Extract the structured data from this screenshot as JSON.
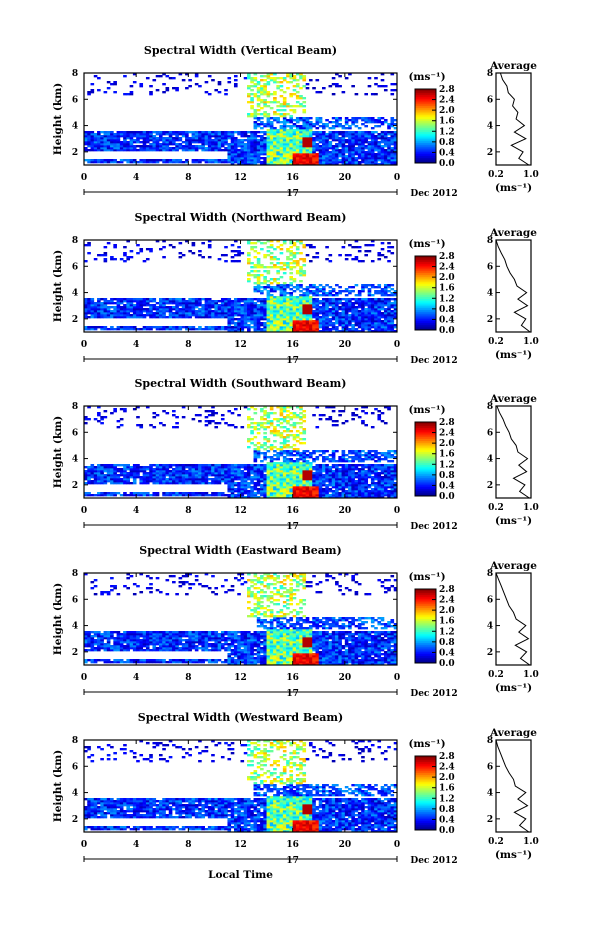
{
  "figure": {
    "xlabel": "Local Time",
    "date_label": "Dec 2012",
    "day_label": "17",
    "cbar_unit": "(ms⁻¹)",
    "avg_title": "Average",
    "avg_xlabel": "(ms⁻¹)"
  },
  "chart_data": [
    {
      "type": "heatmap",
      "title": "Spectral Width (Vertical Beam)",
      "ylabel": "Height (km)",
      "x_ticks": [
        "0",
        "4",
        "8",
        "12",
        "16",
        "20",
        "0"
      ],
      "x_range_hours": [
        0,
        24
      ],
      "y_ticks": [
        "2",
        "4",
        "6",
        "8"
      ],
      "y_range_km": [
        1,
        8
      ],
      "colorbar": {
        "min": 0.0,
        "max": 2.8,
        "ticks": [
          "0.0",
          "0.4",
          "0.8",
          "1.2",
          "1.6",
          "2.0",
          "2.4",
          "2.8"
        ],
        "colormap": "jet"
      },
      "average_profile": {
        "x_ticks": [
          "0.2",
          "1.0"
        ],
        "x_range": [
          0.2,
          1.0
        ],
        "y_ticks": [
          "2",
          "4",
          "6",
          "8"
        ],
        "y_range": [
          1,
          8
        ],
        "height_km": [
          1.0,
          1.5,
          2.0,
          2.5,
          3.0,
          3.5,
          4.0,
          4.5,
          5.0,
          5.5,
          6.0,
          6.5,
          7.0,
          7.5,
          8.0
        ],
        "width_ms": [
          0.95,
          0.72,
          0.82,
          0.55,
          0.88,
          0.62,
          0.85,
          0.66,
          0.7,
          0.58,
          0.62,
          0.48,
          0.45,
          0.35,
          0.3
        ]
      }
    },
    {
      "type": "heatmap",
      "title": "Spectral Width (Northward Beam)",
      "ylabel": "Height (km)",
      "x_ticks": [
        "0",
        "4",
        "8",
        "12",
        "16",
        "20",
        "0"
      ],
      "x_range_hours": [
        0,
        24
      ],
      "y_ticks": [
        "2",
        "4",
        "6",
        "8"
      ],
      "y_range_km": [
        1,
        8
      ],
      "colorbar": {
        "min": 0.0,
        "max": 2.8,
        "ticks": [
          "0.0",
          "0.4",
          "0.8",
          "1.2",
          "1.6",
          "2.0",
          "2.4",
          "2.8"
        ],
        "colormap": "jet"
      },
      "average_profile": {
        "x_ticks": [
          "0.2",
          "1.0"
        ],
        "x_range": [
          0.2,
          1.0
        ],
        "y_ticks": [
          "2",
          "4",
          "6",
          "8"
        ],
        "y_range": [
          1,
          8
        ],
        "height_km": [
          1.0,
          1.5,
          2.0,
          2.5,
          3.0,
          3.5,
          4.0,
          4.5,
          5.0,
          5.5,
          6.0,
          6.5,
          7.0,
          7.5,
          8.0
        ],
        "width_ms": [
          0.98,
          0.78,
          0.88,
          0.62,
          0.92,
          0.7,
          0.9,
          0.68,
          0.62,
          0.52,
          0.45,
          0.4,
          0.32,
          0.25,
          0.2
        ]
      }
    },
    {
      "type": "heatmap",
      "title": "Spectral Width (Southward Beam)",
      "ylabel": "Height (km)",
      "x_ticks": [
        "0",
        "4",
        "8",
        "12",
        "16",
        "20",
        "0"
      ],
      "x_range_hours": [
        0,
        24
      ],
      "y_ticks": [
        "2",
        "4",
        "6",
        "8"
      ],
      "y_range_km": [
        1,
        8
      ],
      "colorbar": {
        "min": 0.0,
        "max": 2.8,
        "ticks": [
          "0.0",
          "0.4",
          "0.8",
          "1.2",
          "1.6",
          "2.0",
          "2.4",
          "2.8"
        ],
        "colormap": "jet"
      },
      "average_profile": {
        "x_ticks": [
          "0.2",
          "1.0"
        ],
        "x_range": [
          0.2,
          1.0
        ],
        "y_ticks": [
          "2",
          "4",
          "6",
          "8"
        ],
        "y_range": [
          1,
          8
        ],
        "height_km": [
          1.0,
          1.5,
          2.0,
          2.5,
          3.0,
          3.5,
          4.0,
          4.5,
          5.0,
          5.5,
          6.0,
          6.5,
          7.0,
          7.5,
          8.0
        ],
        "width_ms": [
          0.96,
          0.74,
          0.86,
          0.6,
          0.9,
          0.72,
          0.92,
          0.7,
          0.66,
          0.55,
          0.5,
          0.42,
          0.36,
          0.28,
          0.22
        ]
      }
    },
    {
      "type": "heatmap",
      "title": "Spectral Width (Eastward Beam)",
      "ylabel": "Height (km)",
      "x_ticks": [
        "0",
        "4",
        "8",
        "12",
        "16",
        "20",
        "0"
      ],
      "x_range_hours": [
        0,
        24
      ],
      "y_ticks": [
        "2",
        "4",
        "6",
        "8"
      ],
      "y_range_km": [
        1,
        8
      ],
      "colorbar": {
        "min": 0.0,
        "max": 2.8,
        "ticks": [
          "0.0",
          "0.4",
          "0.8",
          "1.2",
          "1.6",
          "2.0",
          "2.4",
          "2.8"
        ],
        "colormap": "jet"
      },
      "average_profile": {
        "x_ticks": [
          "0.2",
          "1.0"
        ],
        "x_range": [
          0.2,
          1.0
        ],
        "y_ticks": [
          "2",
          "4",
          "6",
          "8"
        ],
        "y_range": [
          1,
          8
        ],
        "height_km": [
          1.0,
          1.5,
          2.0,
          2.5,
          3.0,
          3.5,
          4.0,
          4.5,
          5.0,
          5.5,
          6.0,
          6.5,
          7.0,
          7.5,
          8.0
        ],
        "width_ms": [
          0.97,
          0.76,
          0.9,
          0.64,
          0.94,
          0.72,
          0.88,
          0.66,
          0.6,
          0.5,
          0.44,
          0.38,
          0.32,
          0.26,
          0.2
        ]
      }
    },
    {
      "type": "heatmap",
      "title": "Spectral Width (Westward Beam)",
      "ylabel": "Height (km)",
      "x_ticks": [
        "0",
        "4",
        "8",
        "12",
        "16",
        "20",
        "0"
      ],
      "x_range_hours": [
        0,
        24
      ],
      "y_ticks": [
        "2",
        "4",
        "6",
        "8"
      ],
      "y_range_km": [
        1,
        8
      ],
      "colorbar": {
        "min": 0.0,
        "max": 2.8,
        "ticks": [
          "0.0",
          "0.4",
          "0.8",
          "1.2",
          "1.6",
          "2.0",
          "2.4",
          "2.8"
        ],
        "colormap": "jet"
      },
      "average_profile": {
        "x_ticks": [
          "0.2",
          "1.0"
        ],
        "x_range": [
          0.2,
          1.0
        ],
        "y_ticks": [
          "2",
          "4",
          "6",
          "8"
        ],
        "y_range": [
          1,
          8
        ],
        "height_km": [
          1.0,
          1.5,
          2.0,
          2.5,
          3.0,
          3.5,
          4.0,
          4.5,
          5.0,
          5.5,
          6.0,
          6.5,
          7.0,
          7.5,
          8.0
        ],
        "width_ms": [
          0.95,
          0.74,
          0.88,
          0.62,
          0.92,
          0.7,
          0.88,
          0.64,
          0.6,
          0.5,
          0.42,
          0.36,
          0.3,
          0.24,
          0.2
        ]
      }
    }
  ]
}
